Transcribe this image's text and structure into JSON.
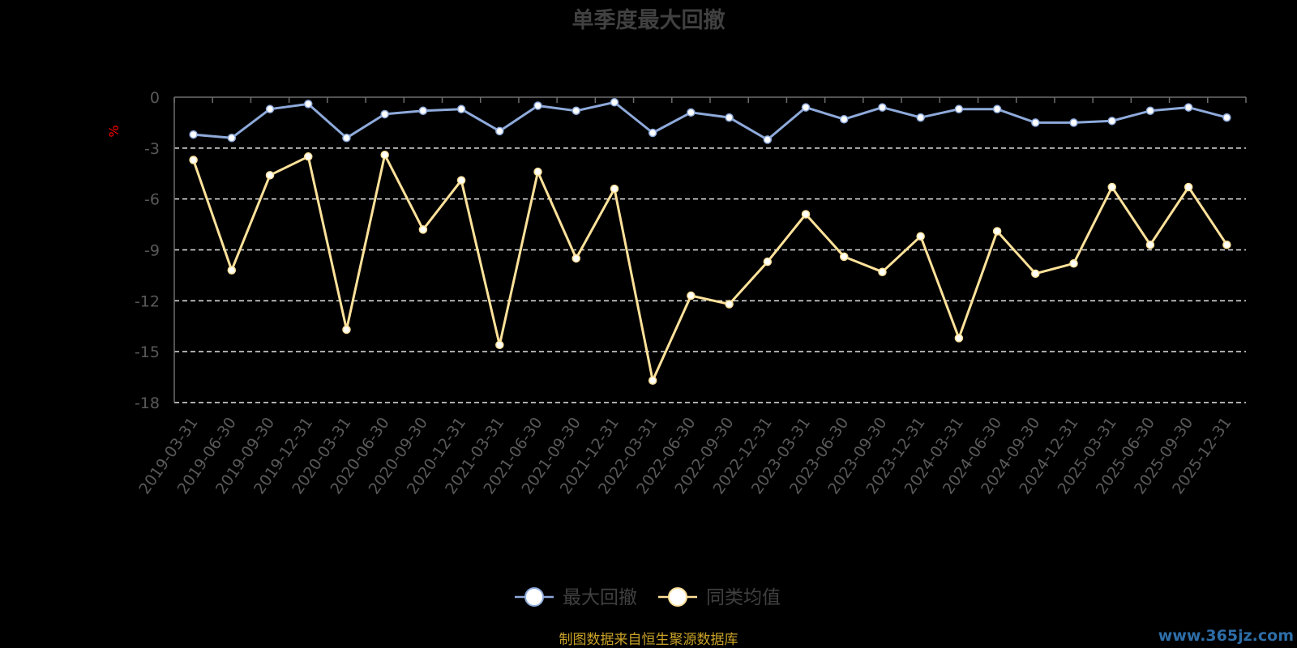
{
  "chart_data": {
    "type": "line",
    "title": "单季度最大回撤",
    "ylabel": "%",
    "ylim": [
      -18,
      0
    ],
    "yticks": [
      0,
      -3,
      -6,
      -9,
      -12,
      -15,
      -18
    ],
    "grid": "dashed horizontal",
    "legend_position": "bottom-center",
    "categories": [
      "2019-03-31",
      "2019-06-30",
      "2019-09-30",
      "2019-12-31",
      "2020-03-31",
      "2020-06-30",
      "2020-09-30",
      "2020-12-31",
      "2021-03-31",
      "2021-06-30",
      "2021-09-30",
      "2021-12-31",
      "2022-03-31",
      "2022-06-30",
      "2022-09-30",
      "2022-12-31",
      "2023-03-31",
      "2023-06-30",
      "2023-09-30",
      "2023-12-31",
      "2024-03-31",
      "2024-06-30",
      "2024-09-30",
      "2024-12-31",
      "2025-03-31",
      "2025-06-30",
      "2025-09-30",
      "2025-12-31"
    ],
    "series": [
      {
        "name": "最大回撤",
        "color": "#8eaadb",
        "values": [
          -2.2,
          -2.4,
          -0.7,
          -0.4,
          -2.4,
          -1.0,
          -0.8,
          -0.7,
          -2.0,
          -0.5,
          -0.8,
          -0.3,
          -2.1,
          -0.9,
          -1.2,
          -2.5,
          -0.6,
          -1.3,
          -0.6,
          -1.2,
          -0.7,
          -0.7,
          -1.5,
          -1.5,
          -1.4,
          -0.8,
          -0.6,
          -1.2
        ]
      },
      {
        "name": "同类均值",
        "color": "#ffe29a",
        "values": [
          -3.7,
          -10.2,
          -4.6,
          -3.5,
          -13.7,
          -3.4,
          -7.8,
          -4.9,
          -14.6,
          -4.4,
          -9.5,
          -5.4,
          -16.7,
          -11.7,
          -12.2,
          -9.7,
          -6.9,
          -9.4,
          -10.3,
          -8.2,
          -14.2,
          -7.9,
          -10.4,
          -9.8,
          -5.3,
          -8.7,
          -5.3,
          -8.7
        ]
      }
    ]
  },
  "footer": {
    "source": "制图数据来自恒生聚源数据库",
    "watermark": "www.365jz.com"
  }
}
